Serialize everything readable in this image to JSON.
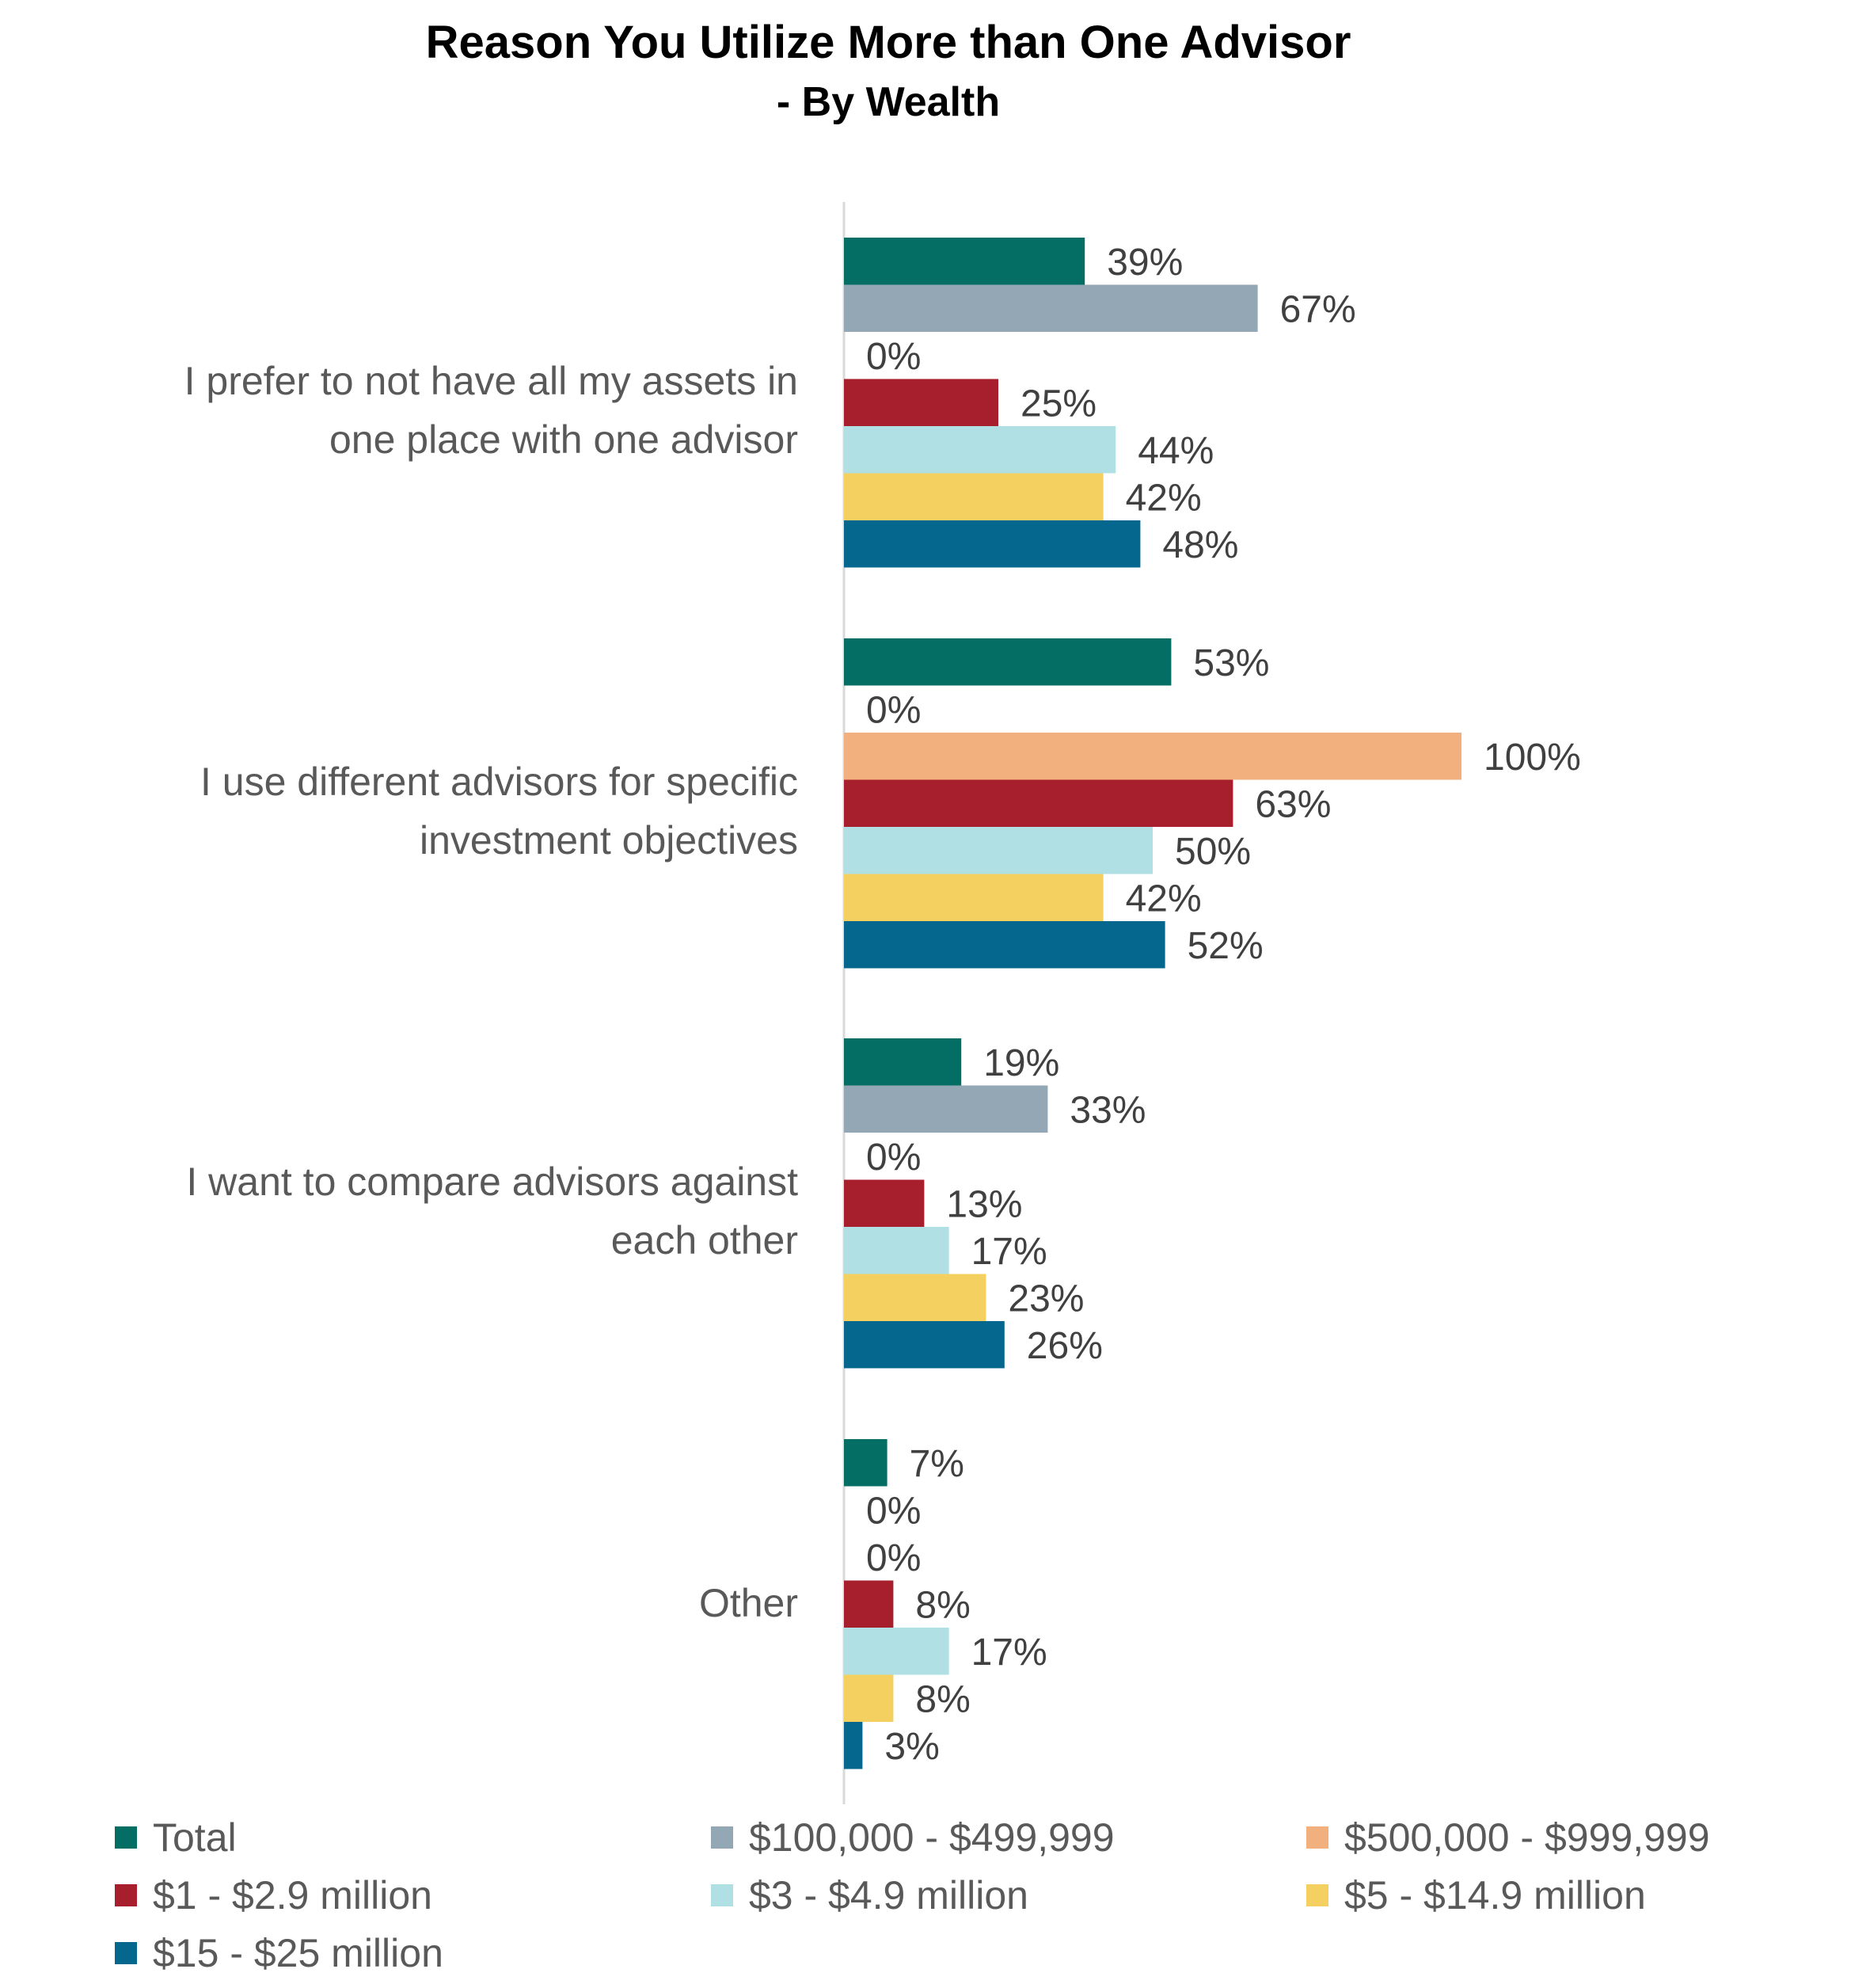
{
  "chart_data": {
    "type": "bar",
    "orientation": "horizontal",
    "title": "Reason You Utilize More than One Advisor",
    "subtitle": "- By Wealth",
    "categories": [
      [
        "I prefer to not have all my assets in",
        "one place with one advisor"
      ],
      [
        "I use different advisors for specific",
        "investment objectives"
      ],
      [
        "I want to compare advisors against",
        "each other"
      ],
      [
        "Other"
      ]
    ],
    "series": [
      {
        "name": "Total",
        "color": "#046D64",
        "values": [
          39,
          53,
          19,
          7
        ],
        "labels": [
          "39%",
          "53%",
          "19%",
          "7%"
        ]
      },
      {
        "name": "$100,000 - $499,999",
        "color": "#94A7B4",
        "values": [
          67,
          0,
          33,
          0
        ],
        "labels": [
          "67%",
          "0%",
          "33%",
          "0%"
        ]
      },
      {
        "name": "$500,000 - $999,999",
        "color": "#F2B07E",
        "values": [
          0,
          100,
          0,
          0
        ],
        "labels": [
          "0%",
          "100%",
          "0%",
          "0%"
        ]
      },
      {
        "name": "$1 - $2.9 million",
        "color": "#A71E2D",
        "values": [
          25,
          63,
          13,
          8
        ],
        "labels": [
          "25%",
          "63%",
          "13%",
          "8%"
        ]
      },
      {
        "name": "$3 - $4.9 million",
        "color": "#B0E0E4",
        "values": [
          44,
          50,
          17,
          17
        ],
        "labels": [
          "44%",
          "50%",
          "17%",
          "17%"
        ]
      },
      {
        "name": "$5 - $14.9 million",
        "color": "#F3D060",
        "values": [
          42,
          42,
          23,
          8
        ],
        "labels": [
          "42%",
          "42%",
          "23%",
          "8%"
        ]
      },
      {
        "name": "$15 - $25 million",
        "color": "#05668E",
        "values": [
          48,
          52,
          26,
          3
        ],
        "labels": [
          "48%",
          "52%",
          "26%",
          "3%"
        ]
      }
    ],
    "xlim": [
      0,
      100
    ],
    "grid": false,
    "legend_position": "bottom"
  }
}
